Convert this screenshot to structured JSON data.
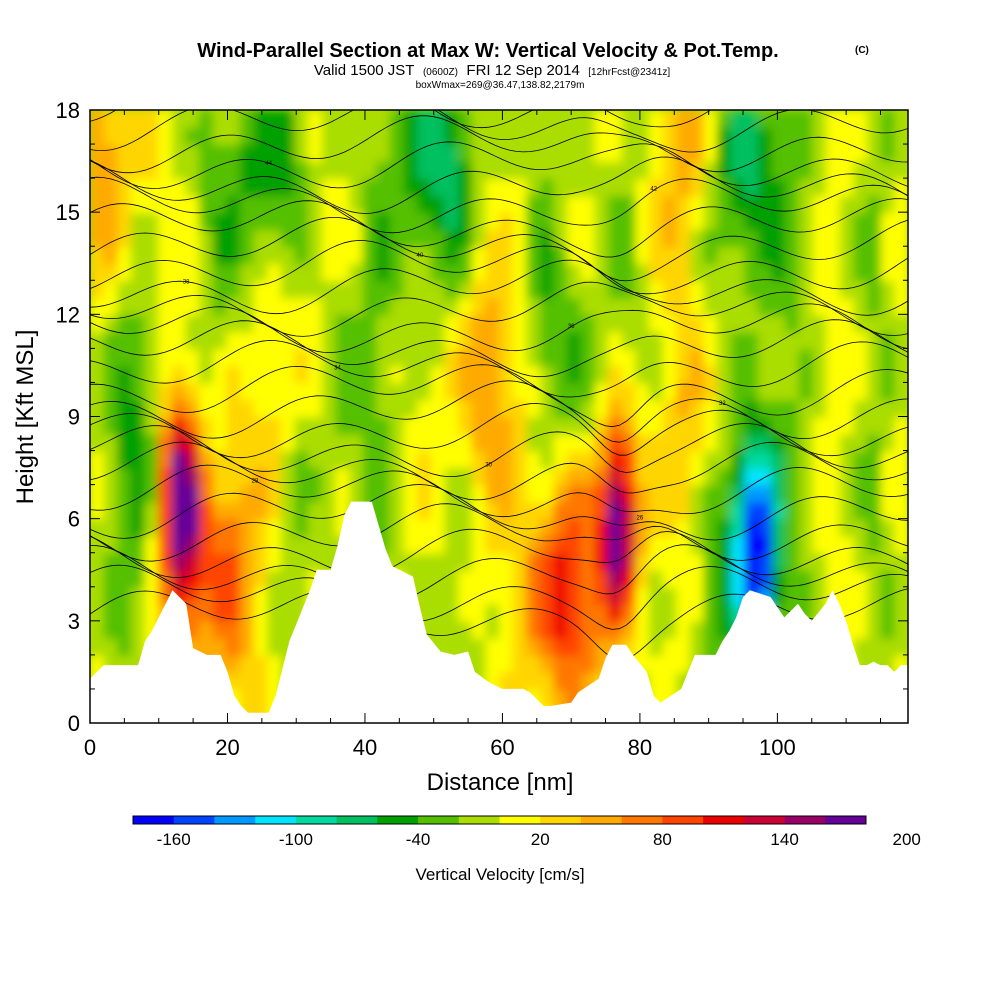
{
  "chart_data": {
    "type": "heatmap",
    "title": "Wind-Parallel Section at Max W: Vertical Velocity & Pot.Temp.",
    "title_mark": "(C)",
    "subtitle_valid": "Valid 1500 JST",
    "subtitle_utc": "(0600Z)",
    "subtitle_date": "FRI 12 Sep 2014",
    "subtitle_fcst": "[12hrFcst@2341z]",
    "subtitle_box": "boxWmax=269@36.47,138.82,2179m",
    "xlabel": "Distance [nm]",
    "ylabel": "Height [Kft MSL]",
    "xlim": [
      0,
      119
    ],
    "ylim": [
      0,
      18
    ],
    "xticks": [
      "0",
      "20",
      "40",
      "60",
      "80",
      "100"
    ],
    "yticks": [
      "0",
      "3",
      "6",
      "9",
      "12",
      "15",
      "18"
    ],
    "colorbar_label": "Vertical Velocity [cm/s]",
    "colorbar_ticks": [
      "-160",
      "-100",
      "-40",
      "20",
      "80",
      "140",
      "200"
    ],
    "colorbar_colors": [
      "#0000ff",
      "#0044ff",
      "#0099ff",
      "#00e5ff",
      "#00d9a0",
      "#00c060",
      "#00a000",
      "#55c000",
      "#aadd00",
      "#ffff00",
      "#ffd500",
      "#ffaa00",
      "#ff7700",
      "#ff4400",
      "#ee0000",
      "#cc0033",
      "#990066",
      "#660099"
    ],
    "legend_placement": "bottom",
    "velocity_features": [
      {
        "x": 13,
        "z": 6.5,
        "w": 175
      },
      {
        "x": 18.5,
        "z": 4.5,
        "w": 95
      },
      {
        "x": 68.5,
        "z": 4,
        "w": 120
      },
      {
        "x": 77,
        "z": 6,
        "w": 190
      },
      {
        "x": 97,
        "z": 4.8,
        "w": -155
      },
      {
        "x": 93.5,
        "z": 6.5,
        "w": -90
      },
      {
        "x": 90,
        "z": 8,
        "w": 80
      },
      {
        "x": 7,
        "z": 8,
        "w": -35
      },
      {
        "x": 35,
        "z": 10,
        "w": -40
      },
      {
        "x": 50,
        "z": 16.5,
        "w": -70
      },
      {
        "x": 25,
        "z": 16,
        "w": -55
      },
      {
        "x": 95,
        "z": 16.5,
        "w": -80
      },
      {
        "x": 70,
        "z": 10,
        "w": -40
      },
      {
        "x": 88,
        "z": 17,
        "w": 60
      },
      {
        "x": 57,
        "z": 10,
        "w": 60
      },
      {
        "x": 30,
        "z": 11,
        "w": 50
      },
      {
        "x": 3,
        "z": 17,
        "w": 60
      }
    ],
    "theta_contour_labels": [
      "44",
      "42",
      "40",
      "38",
      "36",
      "34",
      "32",
      "30",
      "28",
      "26",
      "24",
      "22"
    ],
    "terrain_heights_kft": [
      [
        0,
        1.3
      ],
      [
        2,
        1.7
      ],
      [
        7,
        1.7
      ],
      [
        8,
        2.4
      ],
      [
        9,
        2.7
      ],
      [
        10,
        3.1
      ],
      [
        12,
        3.9
      ],
      [
        14,
        3.5
      ],
      [
        15,
        2.2
      ],
      [
        17,
        2.0
      ],
      [
        19,
        2.0
      ],
      [
        20,
        1.5
      ],
      [
        21,
        0.8
      ],
      [
        22,
        0.5
      ],
      [
        23,
        0.3
      ],
      [
        26,
        0.3
      ],
      [
        27,
        0.8
      ],
      [
        28,
        1.6
      ],
      [
        29,
        2.4
      ],
      [
        30,
        2.9
      ],
      [
        31,
        3.4
      ],
      [
        32,
        3.9
      ],
      [
        33,
        4.5
      ],
      [
        35,
        4.5
      ],
      [
        36,
        5.2
      ],
      [
        37,
        6.1
      ],
      [
        38,
        6.5
      ],
      [
        41,
        6.5
      ],
      [
        42,
        5.8
      ],
      [
        43,
        5.1
      ],
      [
        44,
        4.6
      ],
      [
        47,
        4.3
      ],
      [
        48,
        3.4
      ],
      [
        49,
        2.6
      ],
      [
        51,
        2.1
      ],
      [
        53,
        2.0
      ],
      [
        55,
        2.1
      ],
      [
        56,
        1.5
      ],
      [
        58,
        1.2
      ],
      [
        60,
        1.0
      ],
      [
        63,
        1.0
      ],
      [
        64,
        0.9
      ],
      [
        65,
        0.7
      ],
      [
        66,
        0.5
      ],
      [
        67,
        0.5
      ],
      [
        70,
        0.6
      ],
      [
        71,
        0.9
      ],
      [
        74,
        1.3
      ],
      [
        75,
        1.9
      ],
      [
        76,
        2.3
      ],
      [
        78,
        2.3
      ],
      [
        79,
        2.0
      ],
      [
        81,
        1.5
      ],
      [
        82,
        0.8
      ],
      [
        83,
        0.6
      ],
      [
        86,
        1.0
      ],
      [
        87,
        1.5
      ],
      [
        88,
        2.0
      ],
      [
        91,
        2.0
      ],
      [
        92,
        2.4
      ],
      [
        93,
        2.7
      ],
      [
        94,
        3.1
      ],
      [
        95,
        3.7
      ],
      [
        96,
        3.9
      ],
      [
        99,
        3.7
      ],
      [
        100,
        3.4
      ],
      [
        101,
        3.1
      ],
      [
        103,
        3.5
      ],
      [
        104,
        3.2
      ],
      [
        105,
        3.0
      ],
      [
        107,
        3.5
      ],
      [
        108,
        3.9
      ],
      [
        109,
        3.5
      ],
      [
        110,
        3.0
      ],
      [
        111,
        2.3
      ],
      [
        112,
        1.7
      ],
      [
        113,
        1.7
      ],
      [
        114,
        1.8
      ],
      [
        115,
        1.7
      ],
      [
        116,
        1.7
      ],
      [
        117,
        1.5
      ],
      [
        118,
        1.7
      ],
      [
        119,
        1.7
      ]
    ]
  }
}
